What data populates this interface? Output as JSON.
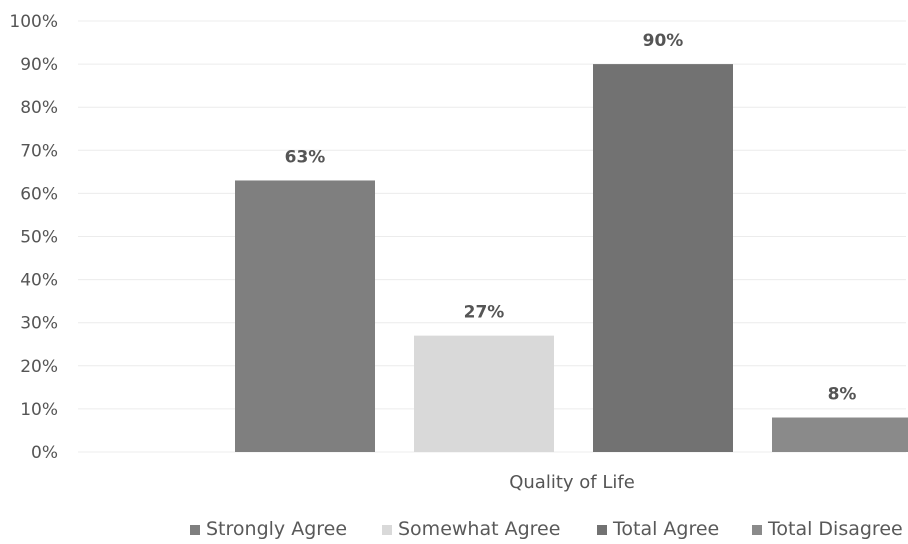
{
  "chart_data": {
    "type": "bar",
    "title": "",
    "xlabel": "",
    "ylabel": "",
    "categories": [
      "Quality of Life"
    ],
    "series": [
      {
        "name": "Strongly Agree",
        "values": [
          63
        ],
        "label": "63%",
        "color": "#7f7f7f"
      },
      {
        "name": "Somewhat Agree",
        "values": [
          27
        ],
        "label": "27%",
        "color": "#d9d9d9"
      },
      {
        "name": "Total Agree",
        "values": [
          90
        ],
        "label": "90%",
        "color": "#727272"
      },
      {
        "name": "Total Disagree",
        "values": [
          8
        ],
        "label": "8%",
        "color": "#8a8a8a"
      }
    ],
    "ylim": [
      0,
      100
    ],
    "yticks": [
      "0%",
      "10%",
      "20%",
      "30%",
      "40%",
      "50%",
      "60%",
      "70%",
      "80%",
      "90%",
      "100%"
    ],
    "grid": true,
    "legend": "bottom"
  }
}
